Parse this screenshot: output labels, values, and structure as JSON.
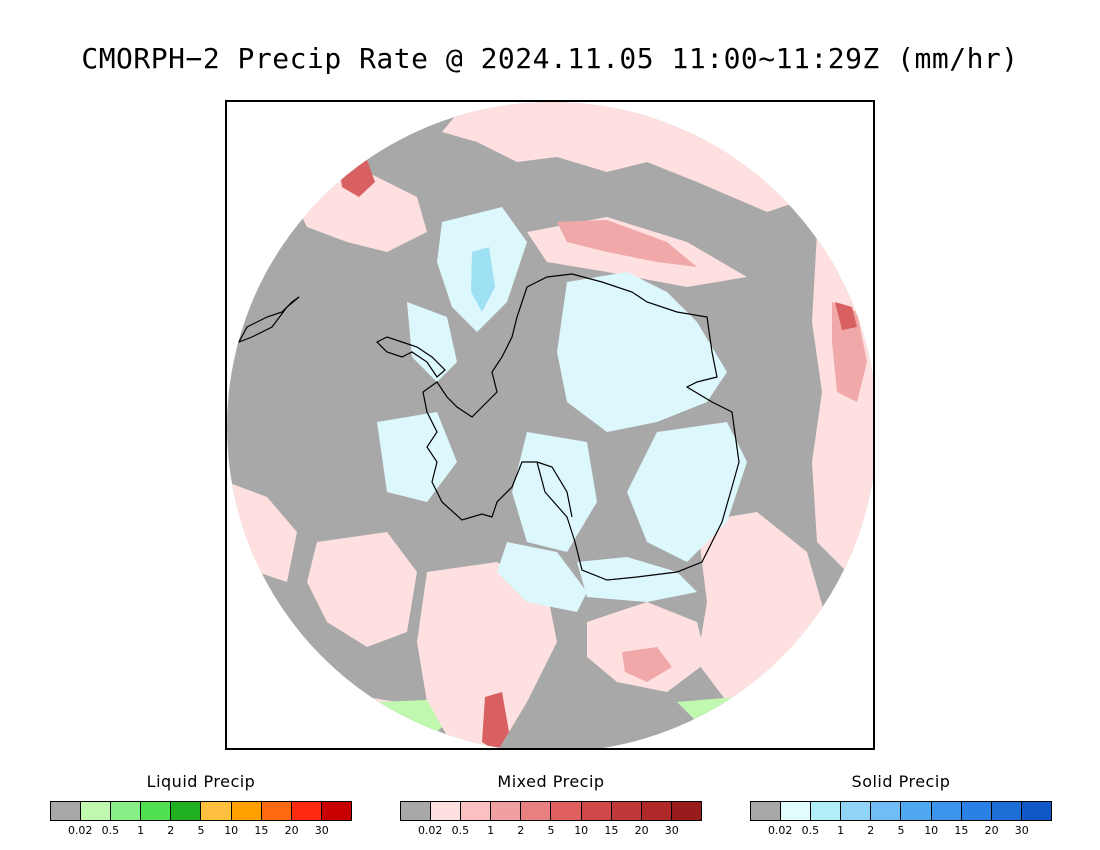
{
  "title": "CMORPH−2 Precip Rate @ 2024.11.05 11:00~11:29Z (mm/hr)",
  "map": {
    "projection": "south polar stereographic",
    "region": "Antarctica / Southern Ocean",
    "colors": {
      "no_precip": "#a8a8a8",
      "mixed_light": "#ffe0e0",
      "mixed_moderate": "#f0a8a8",
      "mixed_heavy": "#d86060",
      "solid_light": "#dcf8fc",
      "solid_moderate": "#9ee0f4",
      "liquid_light": "#c0f8b0",
      "coastline": "#000000"
    }
  },
  "legends": [
    {
      "title": "Liquid Precip",
      "ticks": [
        "0.02",
        "0.5",
        "1",
        "2",
        "5",
        "10",
        "15",
        "20",
        "30"
      ],
      "colors": [
        "#a8a8a8",
        "#c0f8b0",
        "#88ee88",
        "#50e050",
        "#20b020",
        "#ffc040",
        "#ffa000",
        "#ff6a10",
        "#ff2a10",
        "#c80000"
      ]
    },
    {
      "title": "Mixed Precip",
      "ticks": [
        "0.02",
        "0.5",
        "1",
        "2",
        "5",
        "10",
        "15",
        "20",
        "30"
      ],
      "colors": [
        "#a8a8a8",
        "#ffe0e0",
        "#fcc0c0",
        "#f0a0a0",
        "#e88080",
        "#e06060",
        "#d04848",
        "#c03838",
        "#b02828",
        "#981c1c"
      ]
    },
    {
      "title": "Solid Precip",
      "ticks": [
        "0.02",
        "0.5",
        "1",
        "2",
        "5",
        "10",
        "15",
        "20",
        "30"
      ],
      "colors": [
        "#a8a8a8",
        "#e0fcfc",
        "#b0eef8",
        "#90d4f8",
        "#70bcf4",
        "#50a8f0",
        "#3c94ec",
        "#2a80e4",
        "#1e6ed8",
        "#1058c8"
      ]
    }
  ]
}
